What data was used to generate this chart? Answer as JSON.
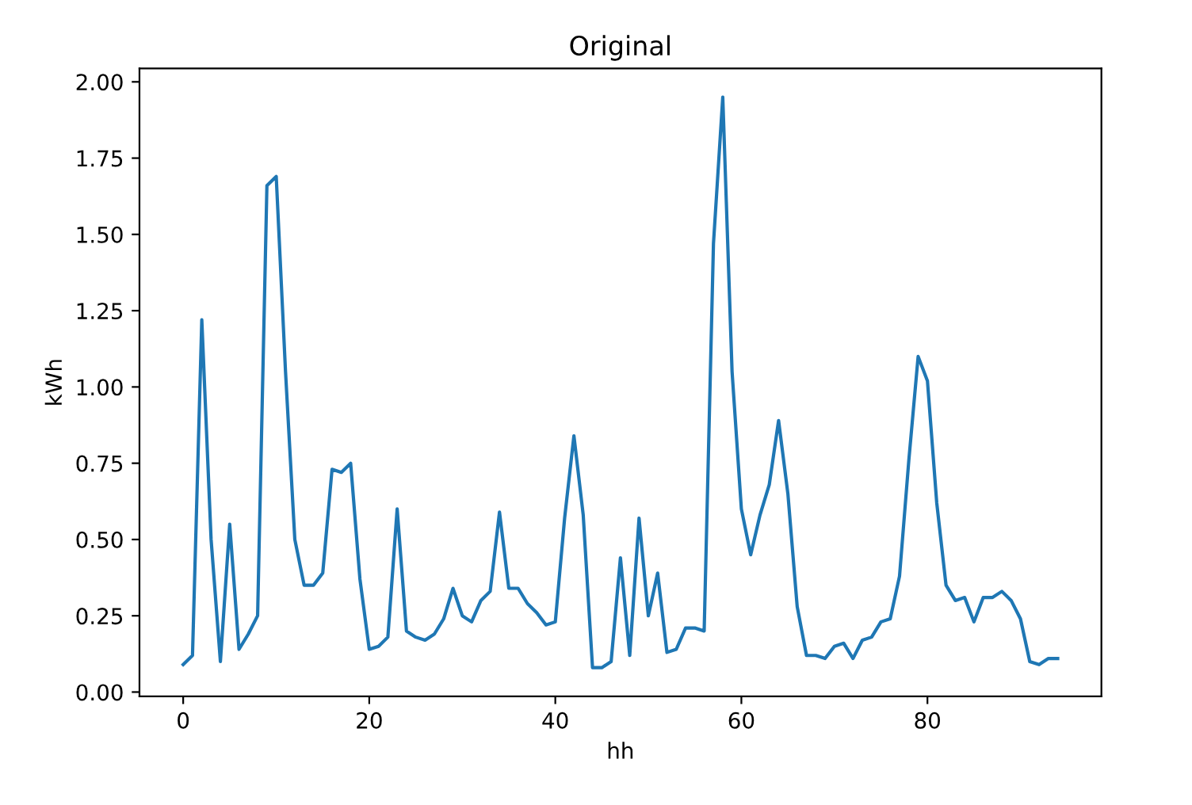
{
  "chart_data": {
    "type": "line",
    "title": "Original",
    "xlabel": "hh",
    "ylabel": "kWh",
    "x": [
      0,
      1,
      2,
      3,
      4,
      5,
      6,
      7,
      8,
      9,
      10,
      11,
      12,
      13,
      14,
      15,
      16,
      17,
      18,
      19,
      20,
      21,
      22,
      23,
      24,
      25,
      26,
      27,
      28,
      29,
      30,
      31,
      32,
      33,
      34,
      35,
      36,
      37,
      38,
      39,
      40,
      41,
      42,
      43,
      44,
      45,
      46,
      47,
      48,
      49,
      50,
      51,
      52,
      53,
      54,
      55,
      56,
      57,
      58,
      59,
      60,
      61,
      62,
      63,
      64,
      65,
      66,
      67,
      68,
      69,
      70,
      71,
      72,
      73,
      74,
      75,
      76,
      77,
      78,
      79,
      80,
      81,
      82,
      83,
      84,
      85,
      86,
      87,
      88,
      89,
      90,
      91,
      92,
      93,
      94
    ],
    "series": [
      {
        "color": "#1f77b4",
        "values": [
          0.09,
          0.12,
          1.22,
          0.5,
          0.1,
          0.55,
          0.14,
          0.19,
          0.25,
          1.66,
          1.69,
          1.05,
          0.5,
          0.35,
          0.35,
          0.39,
          0.73,
          0.72,
          0.75,
          0.37,
          0.14,
          0.15,
          0.18,
          0.6,
          0.2,
          0.18,
          0.17,
          0.19,
          0.24,
          0.34,
          0.25,
          0.23,
          0.3,
          0.33,
          0.59,
          0.34,
          0.34,
          0.29,
          0.26,
          0.22,
          0.23,
          0.57,
          0.84,
          0.58,
          0.08,
          0.08,
          0.1,
          0.44,
          0.12,
          0.57,
          0.25,
          0.39,
          0.13,
          0.14,
          0.21,
          0.21,
          0.2,
          1.47,
          1.95,
          1.05,
          0.6,
          0.45,
          0.58,
          0.68,
          0.89,
          0.65,
          0.28,
          0.12,
          0.12,
          0.11,
          0.15,
          0.16,
          0.11,
          0.17,
          0.18,
          0.23,
          0.24,
          0.38,
          0.76,
          1.1,
          1.02,
          0.62,
          0.35,
          0.3,
          0.31,
          0.23,
          0.31,
          0.31,
          0.33,
          0.3,
          0.24,
          0.1,
          0.09,
          0.11,
          0.11
        ]
      }
    ],
    "xlim": [
      -4.7,
      98.7
    ],
    "ylim": [
      -0.014,
      2.044
    ],
    "xticks": [
      0,
      20,
      40,
      60,
      80
    ],
    "yticks": [
      {
        "value": 0,
        "label": "0.00"
      },
      {
        "value": 0.25,
        "label": "0.25"
      },
      {
        "value": 0.5,
        "label": "0.50"
      },
      {
        "value": 0.75,
        "label": "0.75"
      },
      {
        "value": 1.0,
        "label": "1.00"
      },
      {
        "value": 1.25,
        "label": "1.25"
      },
      {
        "value": 1.5,
        "label": "1.50"
      },
      {
        "value": 1.75,
        "label": "1.75"
      },
      {
        "value": 2.0,
        "label": "2.00"
      }
    ],
    "grid": false
  }
}
